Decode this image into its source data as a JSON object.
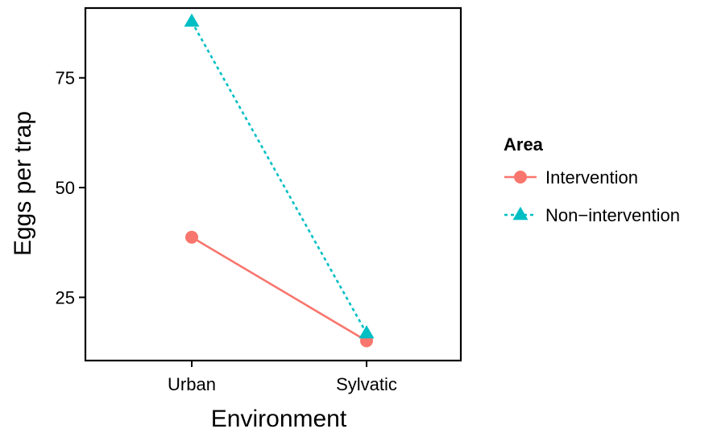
{
  "chart_data": {
    "type": "line",
    "title": "",
    "xlabel": "Environment",
    "ylabel": "Eggs per trap",
    "categories": [
      "Urban",
      "Sylvatic"
    ],
    "yticks": [
      25,
      50,
      75
    ],
    "ylim": [
      10.6,
      90.9
    ],
    "grid": false,
    "legend": {
      "title": "Area",
      "placement": "right"
    },
    "series": [
      {
        "name": "Intervention",
        "values": [
          38.7,
          15.1
        ],
        "color": "#F8766D",
        "marker": "circle",
        "line_style": "solid"
      },
      {
        "name": "Non−intervention",
        "values": [
          87.8,
          16.8
        ],
        "color": "#00BFC4",
        "marker": "triangle",
        "line_style": "dotted"
      }
    ]
  }
}
